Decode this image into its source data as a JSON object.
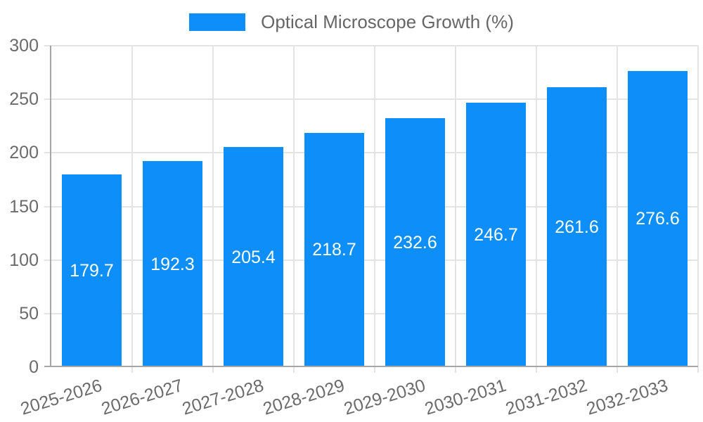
{
  "chart_data": {
    "type": "bar",
    "title": "Optical Microscope Growth (%)",
    "categories": [
      "2025-2026",
      "2026-2027",
      "2027-2028",
      "2028-2029",
      "2029-2030",
      "2030-2031",
      "2031-2032",
      "2032-2033"
    ],
    "values": [
      179.7,
      192.3,
      205.4,
      218.7,
      232.6,
      246.7,
      261.6,
      276.6
    ],
    "value_labels": [
      "179.7",
      "192.3",
      "205.4",
      "218.7",
      "232.6",
      "246.7",
      "261.6",
      "276.6"
    ],
    "xlabel": "",
    "ylabel": "",
    "ylim": [
      0,
      300
    ],
    "yticks": [
      0,
      50,
      100,
      150,
      200,
      250,
      300
    ],
    "grid": true,
    "legend_position": "top",
    "colors": {
      "bar": "#0d8ef8",
      "bar_label": "#ffffff",
      "axis_text": "#6b6b6b",
      "legend_text": "#666666",
      "gridline": "#e3e3e3",
      "axis_line": "#a6a6a6",
      "background": "#ffffff"
    }
  }
}
